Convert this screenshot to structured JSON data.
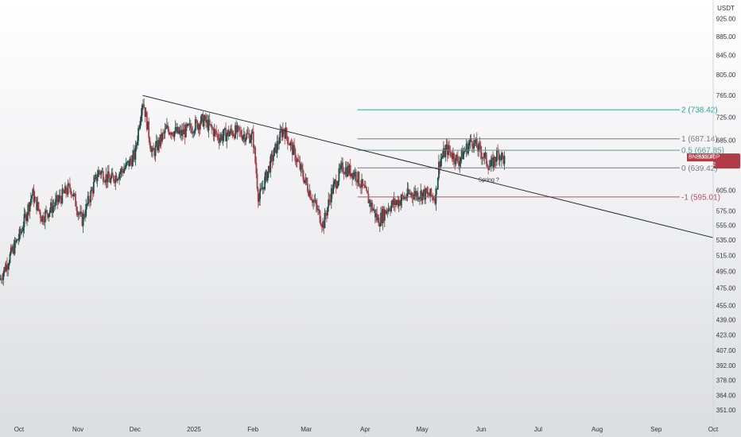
{
  "chart_data": {
    "type": "candlestick",
    "currency": "USDT",
    "symbol": "BNBUSDT.P",
    "last_price": "652.40",
    "countdown": "08:52:02",
    "y_axis": {
      "scale": "log",
      "range": [
        345,
        950
      ],
      "ticks": [
        "925.00",
        "885.00",
        "845.00",
        "805.00",
        "765.00",
        "725.00",
        "685.00",
        "645.00",
        "605.00",
        "575.00",
        "555.00",
        "535.00",
        "515.00",
        "495.00",
        "475.00",
        "455.00",
        "439.00",
        "423.00",
        "407.00",
        "392.00",
        "378.00",
        "364.00",
        "351.00"
      ]
    },
    "x_axis": {
      "range": [
        "2024-09-21",
        "2025-10-01"
      ],
      "ticks": [
        {
          "date": "2024-10-01",
          "label": "Oct"
        },
        {
          "date": "2024-11-01",
          "label": "Nov"
        },
        {
          "date": "2024-12-01",
          "label": "Dec"
        },
        {
          "date": "2025-01-01",
          "label": "2025"
        },
        {
          "date": "2025-02-01",
          "label": "Feb"
        },
        {
          "date": "2025-03-01",
          "label": "Mar"
        },
        {
          "date": "2025-04-01",
          "label": "Apr"
        },
        {
          "date": "2025-05-01",
          "label": "May"
        },
        {
          "date": "2025-06-01",
          "label": "Jun"
        },
        {
          "date": "2025-07-01",
          "label": "Jul"
        },
        {
          "date": "2025-08-01",
          "label": "Aug"
        },
        {
          "date": "2025-09-01",
          "label": "Sep"
        },
        {
          "date": "2025-10-01",
          "label": "Oct"
        }
      ]
    },
    "price_path": [
      {
        "date": "2024-09-21",
        "price": 485
      },
      {
        "date": "2024-10-02",
        "price": 545
      },
      {
        "date": "2024-10-08",
        "price": 600
      },
      {
        "date": "2024-10-13",
        "price": 565
      },
      {
        "date": "2024-10-20",
        "price": 585
      },
      {
        "date": "2024-10-28",
        "price": 610
      },
      {
        "date": "2024-11-03",
        "price": 560
      },
      {
        "date": "2024-11-12",
        "price": 635
      },
      {
        "date": "2024-11-18",
        "price": 620
      },
      {
        "date": "2024-11-26",
        "price": 640
      },
      {
        "date": "2024-12-01",
        "price": 660
      },
      {
        "date": "2024-12-05",
        "price": 760
      },
      {
        "date": "2024-12-10",
        "price": 660
      },
      {
        "date": "2024-12-18",
        "price": 705
      },
      {
        "date": "2024-12-25",
        "price": 695
      },
      {
        "date": "2025-01-06",
        "price": 720
      },
      {
        "date": "2025-01-14",
        "price": 690
      },
      {
        "date": "2025-01-22",
        "price": 700
      },
      {
        "date": "2025-02-01",
        "price": 690
      },
      {
        "date": "2025-02-04",
        "price": 590
      },
      {
        "date": "2025-02-10",
        "price": 645
      },
      {
        "date": "2025-02-17",
        "price": 705
      },
      {
        "date": "2025-02-23",
        "price": 660
      },
      {
        "date": "2025-03-01",
        "price": 615
      },
      {
        "date": "2025-03-10",
        "price": 555
      },
      {
        "date": "2025-03-14",
        "price": 600
      },
      {
        "date": "2025-03-20",
        "price": 640
      },
      {
        "date": "2025-03-27",
        "price": 630
      },
      {
        "date": "2025-04-03",
        "price": 590
      },
      {
        "date": "2025-04-08",
        "price": 560
      },
      {
        "date": "2025-04-13",
        "price": 580
      },
      {
        "date": "2025-04-25",
        "price": 600
      },
      {
        "date": "2025-05-01",
        "price": 600
      },
      {
        "date": "2025-05-08",
        "price": 595
      },
      {
        "date": "2025-05-10",
        "price": 650
      },
      {
        "date": "2025-05-14",
        "price": 670
      },
      {
        "date": "2025-05-20",
        "price": 650
      },
      {
        "date": "2025-05-27",
        "price": 685
      },
      {
        "date": "2025-06-02",
        "price": 660
      },
      {
        "date": "2025-06-06",
        "price": 640
      },
      {
        "date": "2025-06-10",
        "price": 665
      },
      {
        "date": "2025-06-13",
        "price": 652
      }
    ],
    "trendline": {
      "start": {
        "date": "2024-12-05",
        "price": 765
      },
      "end": {
        "date": "2025-10-01",
        "price": 538
      }
    },
    "fib_levels": [
      {
        "label": "2 (738.42)",
        "value": 738.42,
        "color": "#26a69a",
        "start_date": "2025-03-28"
      },
      {
        "label": "1 (687.14)",
        "value": 687.14,
        "color": "#787b86",
        "start_date": "2025-03-28"
      },
      {
        "label": "0.5 (667.85)",
        "value": 667.85,
        "color": "#5b9c96",
        "start_date": "2025-03-28"
      },
      {
        "label": "0 (639.42)",
        "value": 639.42,
        "color": "#787b86",
        "start_date": "2025-03-28"
      },
      {
        "label": "-1 (595.01)",
        "value": 595.01,
        "color": "#b2555e",
        "start_date": "2025-03-28"
      }
    ],
    "annotations": [
      {
        "text": "Spring ?",
        "date": "2025-06-05",
        "price": 628
      }
    ],
    "colors": {
      "up": "#1f4d45",
      "down": "#a8414a",
      "price_tag": "#b23b48"
    }
  }
}
